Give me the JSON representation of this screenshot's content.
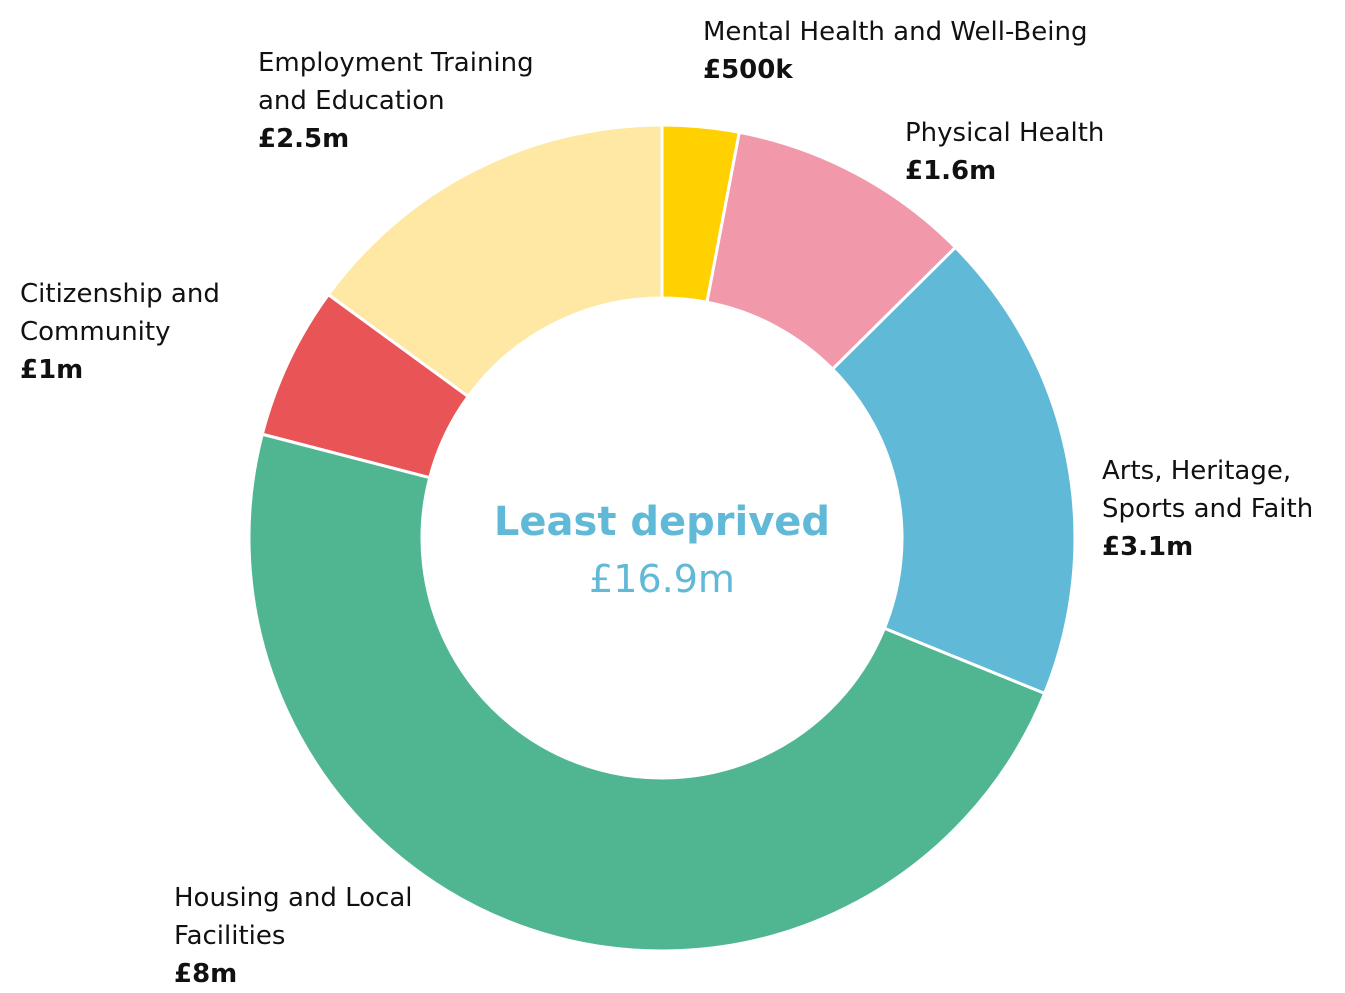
{
  "chart_data": {
    "type": "donut",
    "categories": [
      "Mental Health and Well-Being",
      "Physical Health",
      "Arts, Heritage, Sports and Faith",
      "Housing and Local Facilities",
      "Citizenship and Community",
      "Employment Training and Education"
    ],
    "values": [
      0.5,
      1.6,
      3.1,
      8,
      1,
      2.5
    ],
    "value_labels": [
      "£500k",
      "£1.6m",
      "£3.1m",
      "£8m",
      "£1m",
      "£2.5m"
    ],
    "colors": [
      "#FFD100",
      "#F198AA",
      "#61B9D8",
      "#4FB691",
      "#E95456",
      "#FEE8A3"
    ],
    "center_title": "Least deprived",
    "center_value": "£16.9m"
  }
}
